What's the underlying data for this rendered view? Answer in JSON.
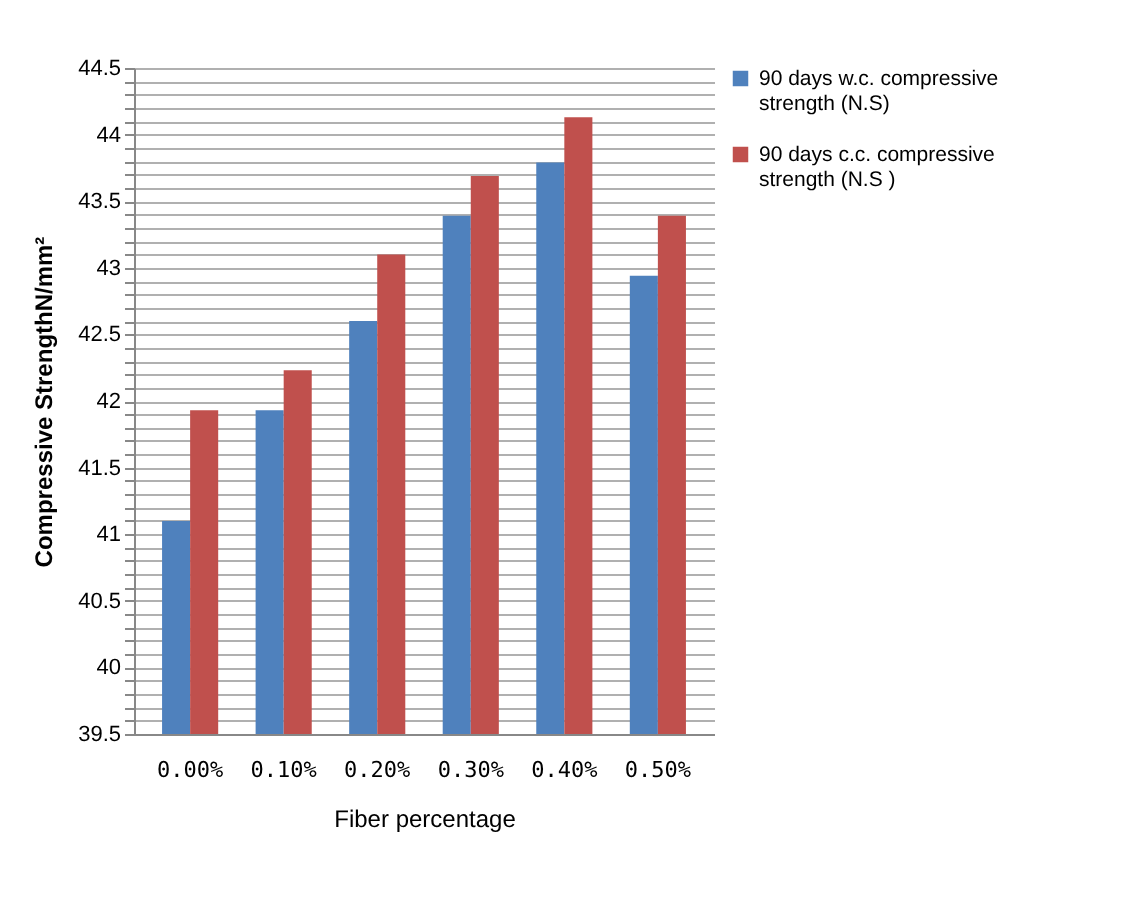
{
  "chart_data": {
    "type": "bar",
    "xlabel": "Fiber percentage",
    "ylabel": "Compressive StrengthN/mm²",
    "categories": [
      "0.00%",
      "0.10%",
      "0.20%",
      "0.30%",
      "0.40%",
      "0.50%"
    ],
    "series": [
      {
        "name": "90 days w.c. compressive strength (N.S)",
        "color": "#4f81bd",
        "values": [
          41.1,
          41.93,
          42.6,
          43.39,
          43.79,
          42.94
        ]
      },
      {
        "name": "90 days c.c. compressive strength (N.S )",
        "color": "#c0504d",
        "values": [
          41.93,
          42.23,
          43.1,
          43.69,
          44.13,
          43.39
        ]
      }
    ],
    "ylim": [
      39.5,
      44.5
    ],
    "yticks": [
      39.5,
      {
        "value": 39.6,
        "label": null
      },
      {
        "value": 39.7,
        "label": null
      },
      {
        "value": 39.8,
        "label": null
      },
      {
        "value": 39.9,
        "label": null
      },
      40,
      {
        "value": 40.1,
        "label": null
      },
      {
        "value": 40.2,
        "label": null
      },
      {
        "value": 40.3,
        "label": null
      },
      {
        "value": 40.4,
        "label": null
      },
      40.5,
      {
        "value": 40.6,
        "label": null
      },
      {
        "value": 40.7,
        "label": null
      },
      {
        "value": 40.8,
        "label": null
      },
      {
        "value": 40.9,
        "label": null
      },
      41,
      {
        "value": 41.1,
        "label": null
      },
      {
        "value": 41.2,
        "label": null
      },
      {
        "value": 41.3,
        "label": null
      },
      {
        "value": 41.4,
        "label": null
      },
      41.5,
      {
        "value": 41.6,
        "label": null
      },
      {
        "value": 41.7,
        "label": null
      },
      {
        "value": 41.8,
        "label": null
      },
      {
        "value": 41.9,
        "label": null
      },
      42,
      {
        "value": 42.1,
        "label": null
      },
      {
        "value": 42.2,
        "label": null
      },
      {
        "value": 42.3,
        "label": null
      },
      {
        "value": 42.4,
        "label": null
      },
      42.5,
      {
        "value": 42.6,
        "label": null
      },
      {
        "value": 42.7,
        "label": null
      },
      {
        "value": 42.8,
        "label": null
      },
      {
        "value": 42.9,
        "label": null
      },
      43,
      {
        "value": 43.1,
        "label": null
      },
      {
        "value": 43.2,
        "label": null
      },
      {
        "value": 43.3,
        "label": null
      },
      {
        "value": 43.4,
        "label": null
      },
      43.5,
      {
        "value": 43.6,
        "label": null
      },
      {
        "value": 43.7,
        "label": null
      },
      {
        "value": 43.8,
        "label": null
      },
      {
        "value": 43.9,
        "label": null
      },
      44,
      {
        "value": 44.1,
        "label": null
      },
      {
        "value": 44.2,
        "label": null
      },
      {
        "value": 44.3,
        "label": null
      },
      {
        "value": 44.4,
        "label": null
      },
      44.5
    ],
    "grid": "y",
    "legend": "right"
  }
}
